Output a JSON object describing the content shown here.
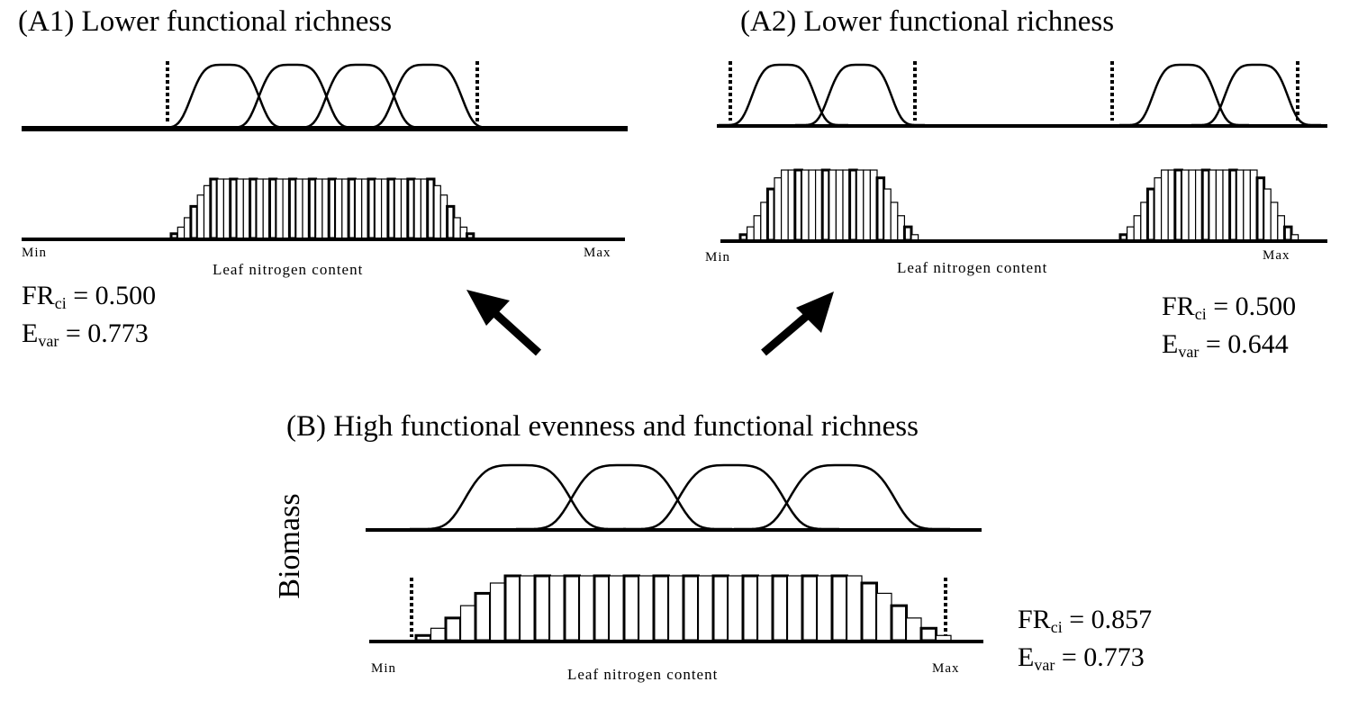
{
  "panels": {
    "a1": {
      "title": "(A1) Lower functional richness",
      "axis_min": "Min",
      "axis_max": "Max",
      "axis_label": "Leaf nitrogen content",
      "fr_prefix": "FR",
      "fr_sub": "ci",
      "fr_value": "= 0.500",
      "e_prefix": "E",
      "e_sub": "var",
      "e_value": "= 0.773"
    },
    "a2": {
      "title": "(A2) Lower functional richness",
      "axis_min": "Min",
      "axis_max": "Max",
      "axis_label": "Leaf nitrogen content",
      "fr_prefix": "FR",
      "fr_sub": "ci",
      "fr_value": "= 0.500",
      "e_prefix": "E",
      "e_sub": "var",
      "e_value": "= 0.644"
    },
    "b": {
      "title": "(B) High functional evenness and functional richness",
      "ylabel": "Biomass",
      "axis_min": "Min",
      "axis_max": "Max",
      "axis_label": "Leaf nitrogen content",
      "fr_prefix": "FR",
      "fr_sub": "ci",
      "fr_value": "= 0.857",
      "e_prefix": "E",
      "e_sub": "var",
      "e_value": "= 0.773"
    }
  },
  "colors": {
    "ink": "#000000",
    "background": "#ffffff"
  }
}
